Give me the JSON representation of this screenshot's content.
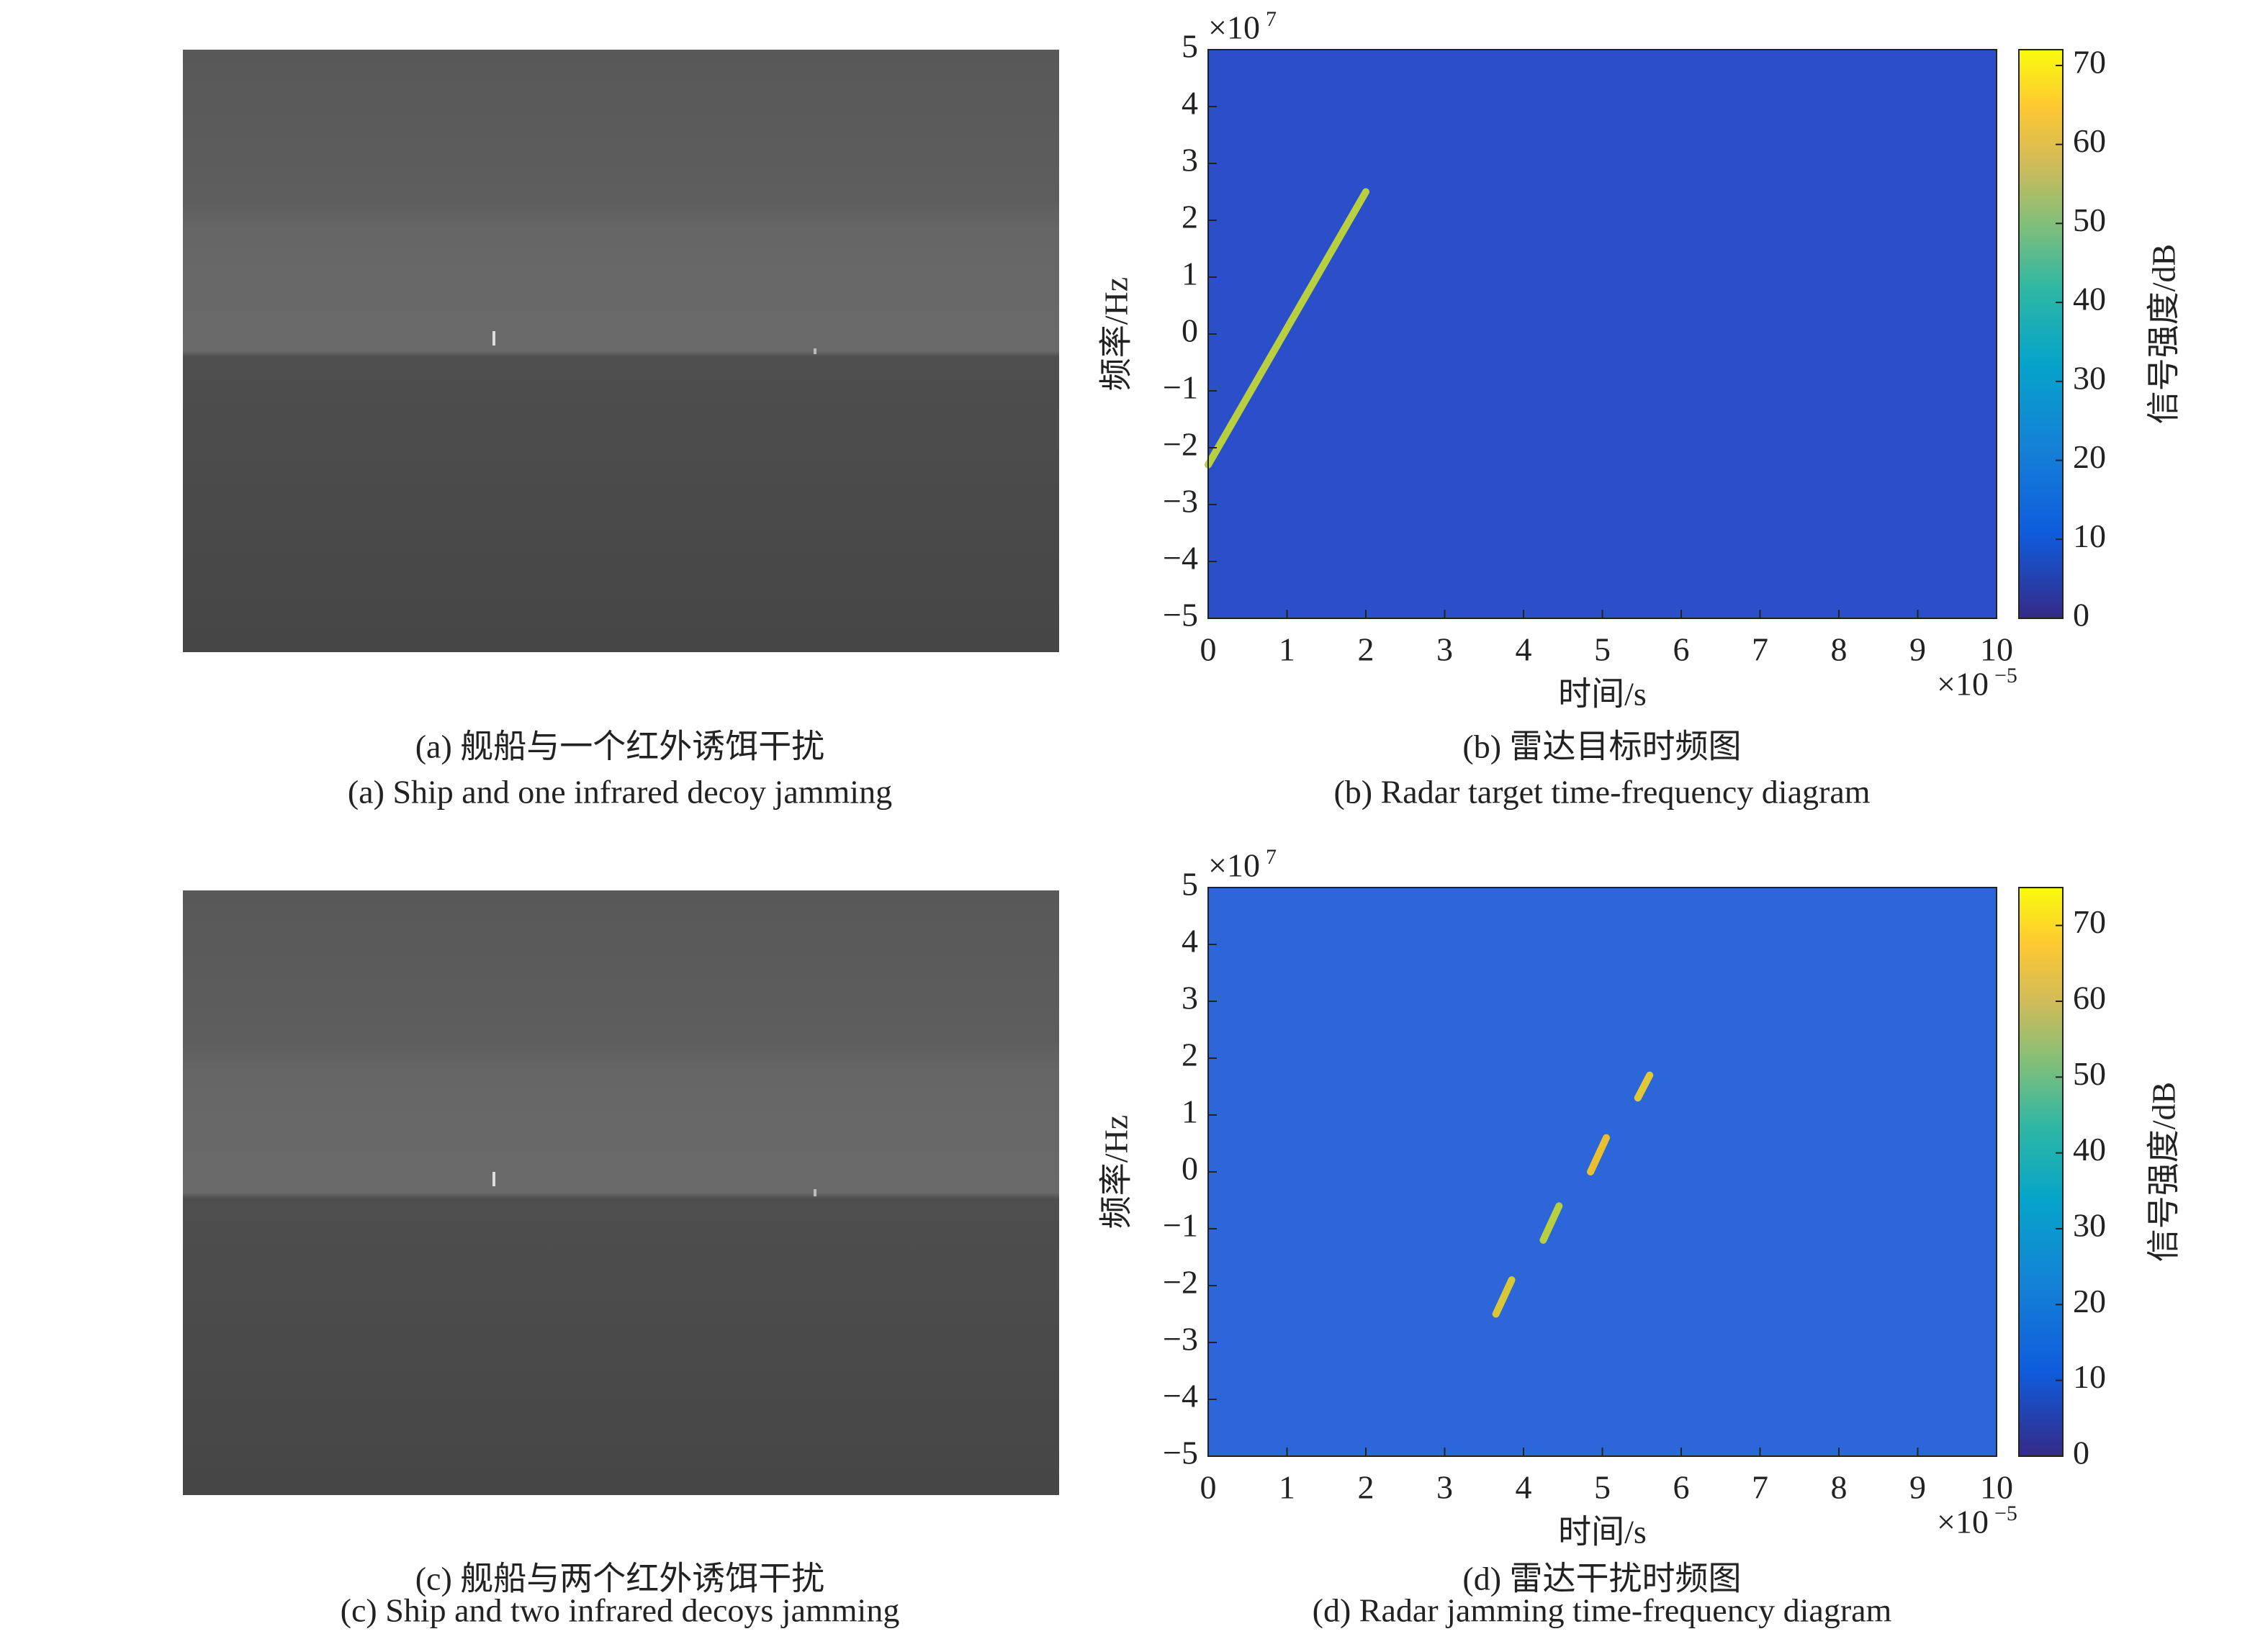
{
  "photos": [
    {
      "caption_zh": "(a) 舰船与一个红外诱饵干扰",
      "caption_en": "(a) Ship and one infrared decoy jamming"
    },
    {
      "caption_zh": "(c) 舰船与两个红外诱饵干扰",
      "caption_en": "(c) Ship and two infrared decoys jamming"
    }
  ],
  "chart_data": [
    {
      "type": "heatmap",
      "caption_zh": "(b) 雷达目标时频图",
      "caption_en": "(b) Radar target time-frequency diagram",
      "x_label": "时间/s",
      "y_label": "频率/Hz",
      "colorbar_label": "信号强度/dB",
      "xexp": {
        "base": "×10",
        "power": "−5"
      },
      "yexp": {
        "base": "×10",
        "power": "7"
      },
      "xlim": [
        0,
        10
      ],
      "xticks": [
        0,
        1,
        2,
        3,
        4,
        5,
        6,
        7,
        8,
        9,
        10
      ],
      "ylim": [
        -5,
        5
      ],
      "yticks": [
        {
          "value": -5,
          "label": "−5"
        },
        {
          "value": -4,
          "label": "−4"
        },
        {
          "value": -3,
          "label": "−3"
        },
        {
          "value": -2,
          "label": "−2"
        },
        {
          "value": -1,
          "label": "−1"
        },
        0,
        1,
        2,
        3,
        4,
        5
      ],
      "clim": [
        0,
        72
      ],
      "cticks": [
        0,
        10,
        20,
        30,
        40,
        50,
        60,
        70
      ],
      "background_color": "#2a4fc8",
      "features": [
        {
          "x": [
            0,
            2
          ],
          "y": [
            -2.3,
            2.5
          ],
          "color": "#b8d040"
        }
      ]
    },
    {
      "type": "heatmap",
      "caption_zh": "(d) 雷达干扰时频图",
      "caption_en": "(d) Radar jamming time-frequency diagram",
      "x_label": "时间/s",
      "y_label": "频率/Hz",
      "colorbar_label": "信号强度/dB",
      "xexp": {
        "base": "×10",
        "power": "−5"
      },
      "yexp": {
        "base": "×10",
        "power": "7"
      },
      "xlim": [
        0,
        10
      ],
      "xticks": [
        0,
        1,
        2,
        3,
        4,
        5,
        6,
        7,
        8,
        9,
        10
      ],
      "ylim": [
        -5,
        5
      ],
      "yticks": [
        {
          "value": -5,
          "label": "−5"
        },
        {
          "value": -4,
          "label": "−4"
        },
        {
          "value": -3,
          "label": "−3"
        },
        {
          "value": -2,
          "label": "−2"
        },
        {
          "value": -1,
          "label": "−1"
        },
        0,
        1,
        2,
        3,
        4,
        5
      ],
      "clim": [
        0,
        75
      ],
      "cticks": [
        0,
        10,
        20,
        30,
        40,
        50,
        60,
        70
      ],
      "background_color": "#2c66d8",
      "features": [
        {
          "x": [
            3.65,
            3.85
          ],
          "y": [
            -2.5,
            -1.9
          ],
          "color": "#d8c838"
        },
        {
          "x": [
            4.25,
            4.45
          ],
          "y": [
            -1.2,
            -0.6
          ],
          "color": "#b8d040"
        },
        {
          "x": [
            4.85,
            5.05
          ],
          "y": [
            0,
            0.6
          ],
          "color": "#e8c030"
        },
        {
          "x": [
            5.45,
            5.6
          ],
          "y": [
            1.3,
            1.7
          ],
          "color": "#e0c838"
        }
      ]
    }
  ]
}
